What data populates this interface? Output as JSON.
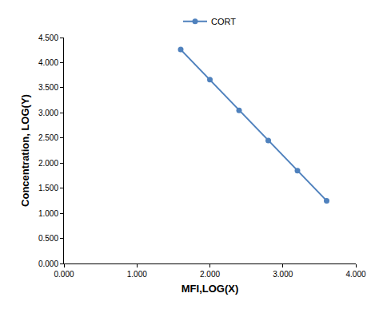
{
  "chart_data": {
    "type": "line",
    "x_label": "MFI,LOG(X)",
    "y_label": "Concentration, LOG(Y)",
    "series": [
      {
        "name": "CORT",
        "color": "#4f81bd",
        "marker": "circle",
        "x": [
          1.6,
          2.0,
          2.4,
          2.8,
          3.2,
          3.6
        ],
        "values": [
          4.26,
          3.66,
          3.05,
          2.45,
          1.85,
          1.25
        ]
      }
    ],
    "xlim": [
      0,
      4
    ],
    "xticks": [
      {
        "value": 0,
        "label": "0.000"
      },
      {
        "value": 1,
        "label": "1.000"
      },
      {
        "value": 2,
        "label": "2.000"
      },
      {
        "value": 3,
        "label": "3.000"
      },
      {
        "value": 4,
        "label": "4.000"
      }
    ],
    "ylim": [
      0,
      4.5
    ],
    "yticks": [
      {
        "value": 0,
        "label": "0.000"
      },
      {
        "value": 0.5,
        "label": "0.500"
      },
      {
        "value": 1,
        "label": "1.000"
      },
      {
        "value": 1.5,
        "label": "1.500"
      },
      {
        "value": 2,
        "label": "2.000"
      },
      {
        "value": 2.5,
        "label": "2.500"
      },
      {
        "value": 3,
        "label": "3.000"
      },
      {
        "value": 3.5,
        "label": "3.500"
      },
      {
        "value": 4,
        "label": "4.000"
      },
      {
        "value": 4.5,
        "label": "4.500"
      }
    ],
    "grid": false,
    "legend": "top"
  }
}
